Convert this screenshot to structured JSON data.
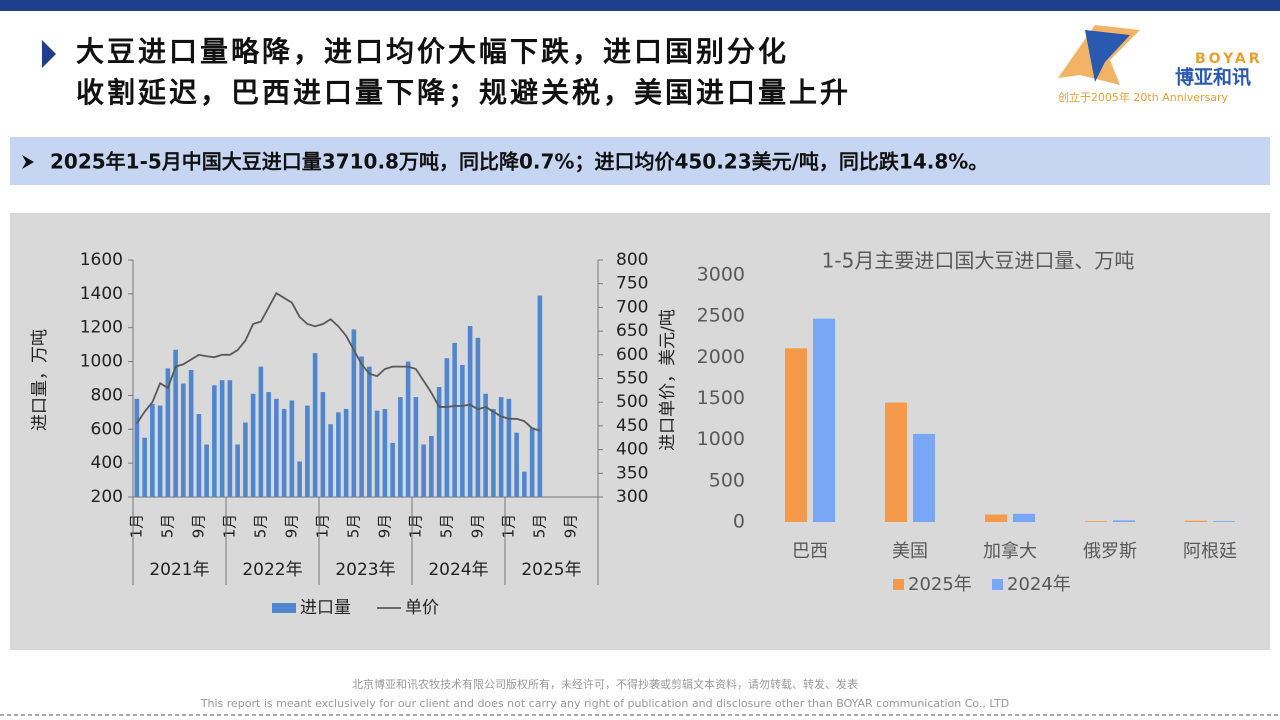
{
  "header": {
    "title_lines": [
      "大豆进口量略降，进口均价大幅下跌，进口国别分化",
      "收割延迟，巴西进口量下降；规避关税，美国进口量上升"
    ],
    "logo": {
      "brand": "BOYAR",
      "name": "博亚和讯",
      "tagline": "创立于2005年 20th Anniversary"
    }
  },
  "summary": "2025年1-5月中国大豆进口量3710.8万吨，同比降0.7%；进口均价450.23美元/吨，同比跌14.8%。",
  "chart_data": [
    {
      "type": "bar",
      "ylabel": "进口量，万吨",
      "y2label": "进口单价，美元/吨",
      "categories": [
        "1月",
        null,
        null,
        null,
        "5月",
        null,
        null,
        null,
        "9月",
        null,
        null,
        null,
        "1月",
        null,
        null,
        null,
        "5月",
        null,
        null,
        null,
        "9月",
        null,
        null,
        null,
        "1月",
        null,
        null,
        null,
        "5月",
        null,
        null,
        null,
        "9月",
        null,
        null,
        null,
        "1月",
        null,
        null,
        null,
        "5月",
        null,
        null,
        null,
        "9月",
        null,
        null,
        null,
        "1月",
        null,
        null,
        null,
        "5月",
        null,
        null,
        null,
        "9月",
        null,
        null,
        null
      ],
      "groups": [
        "2021年",
        "2022年",
        "2023年",
        "2024年",
        "2025年"
      ],
      "ylim": [
        200,
        1600
      ],
      "yticks": [
        200,
        400,
        600,
        800,
        1000,
        1200,
        1400,
        1600
      ],
      "y2lim": [
        300,
        800
      ],
      "y2ticks": [
        300,
        350,
        400,
        450,
        500,
        550,
        600,
        650,
        700,
        750,
        800
      ],
      "series": [
        {
          "name": "进口量",
          "type": "bar",
          "color": "#4f86cf",
          "values": [
            780,
            550,
            750,
            740,
            960,
            1070,
            870,
            950,
            690,
            510,
            860,
            890,
            890,
            510,
            640,
            810,
            970,
            820,
            780,
            720,
            770,
            410,
            740,
            1050,
            820,
            630,
            700,
            720,
            1190,
            1030,
            970,
            710,
            720,
            520,
            790,
            1000,
            790,
            510,
            560,
            850,
            1020,
            1110,
            980,
            1210,
            1140,
            810,
            720,
            790,
            780,
            580,
            350,
            610,
            1390,
            null,
            null,
            null,
            null,
            null,
            null,
            null
          ]
        },
        {
          "name": "单价",
          "type": "line",
          "axis": "y2",
          "color": "#595959",
          "values": [
            455,
            480,
            500,
            540,
            530,
            575,
            580,
            590,
            600,
            597,
            595,
            600,
            600,
            610,
            630,
            665,
            670,
            700,
            730,
            720,
            710,
            680,
            665,
            660,
            665,
            675,
            660,
            640,
            610,
            580,
            560,
            555,
            570,
            575,
            575,
            575,
            570,
            545,
            520,
            490,
            490,
            492,
            492,
            495,
            485,
            490,
            480,
            470,
            465,
            465,
            460,
            445,
            440,
            null,
            null,
            null,
            null,
            null,
            null,
            null
          ]
        }
      ]
    },
    {
      "type": "bar",
      "title": "1-5月主要进口国大豆进口量、万吨",
      "categories": [
        "巴西",
        "美国",
        "加拿大",
        "俄罗斯",
        "阿根廷"
      ],
      "ylim": [
        0,
        3000
      ],
      "yticks": [
        0,
        500,
        1000,
        1500,
        2000,
        2500,
        3000
      ],
      "series": [
        {
          "name": "2025年",
          "color": "#f59a4a",
          "values": [
            2110,
            1450,
            90,
            10,
            15
          ]
        },
        {
          "name": "2024年",
          "color": "#7aa7f5",
          "values": [
            2470,
            1070,
            100,
            20,
            10
          ]
        }
      ]
    }
  ],
  "footer": [
    "北京博亚和讯农牧技术有限公司版权所有，未经许可，不得抄袭或剪辑文本资料，请勿转载、转发、发表",
    "This report is meant exclusively for our client and does not carry any right of publication and disclosure other than BOYAR communication Co., LTD"
  ]
}
